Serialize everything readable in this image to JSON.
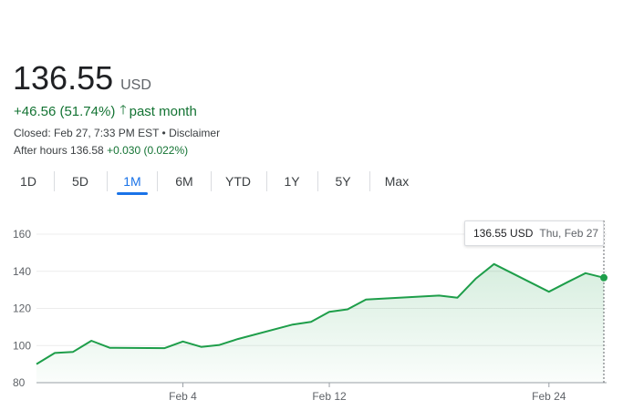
{
  "quote": {
    "price": "136.55",
    "currency": "USD",
    "change": "+46.56 (51.74%)",
    "period": "past month",
    "closed_text": "Closed: Feb 27, 7:33 PM EST • Disclaimer",
    "after_hours_label": "After hours 136.58",
    "after_hours_change": "+0.030 (0.022%)"
  },
  "tabs": [
    {
      "label": "1D",
      "active": false
    },
    {
      "label": "5D",
      "active": false
    },
    {
      "label": "1M",
      "active": true
    },
    {
      "label": "6M",
      "active": false
    },
    {
      "label": "YTD",
      "active": false
    },
    {
      "label": "1Y",
      "active": false
    },
    {
      "label": "5Y",
      "active": false
    },
    {
      "label": "Max",
      "active": false
    }
  ],
  "tooltip": {
    "price": "136.55 USD",
    "date": "Thu, Feb 27"
  },
  "colors": {
    "line": "#1e9e4a",
    "positive": "#137333",
    "active_tab": "#1a73e8"
  },
  "chart_data": {
    "type": "line",
    "title": "",
    "xlabel": "",
    "ylabel": "",
    "ylim": [
      80,
      160
    ],
    "yticks": [
      80,
      100,
      120,
      140,
      160
    ],
    "xticks": [
      {
        "label": "Feb 4",
        "date": "2025-02-04"
      },
      {
        "label": "Feb 12",
        "date": "2025-02-12"
      },
      {
        "label": "Feb 24",
        "date": "2025-02-24"
      }
    ],
    "x": [
      "2025-01-27",
      "2025-01-28",
      "2025-01-29",
      "2025-01-30",
      "2025-01-31",
      "2025-02-03",
      "2025-02-04",
      "2025-02-05",
      "2025-02-06",
      "2025-02-07",
      "2025-02-10",
      "2025-02-11",
      "2025-02-12",
      "2025-02-13",
      "2025-02-14",
      "2025-02-18",
      "2025-02-19",
      "2025-02-20",
      "2025-02-21",
      "2025-02-24",
      "2025-02-25",
      "2025-02-26",
      "2025-02-27"
    ],
    "series": [
      {
        "values": [
          90.0,
          96.0,
          96.6,
          102.6,
          98.8,
          98.6,
          102.2,
          99.3,
          100.3,
          103.5,
          111.3,
          112.8,
          118.2,
          119.5,
          124.8,
          126.9,
          125.8,
          136.0,
          143.9,
          129.0,
          134.1,
          139.0,
          136.55
        ]
      }
    ],
    "grid": true,
    "legend": "none"
  }
}
